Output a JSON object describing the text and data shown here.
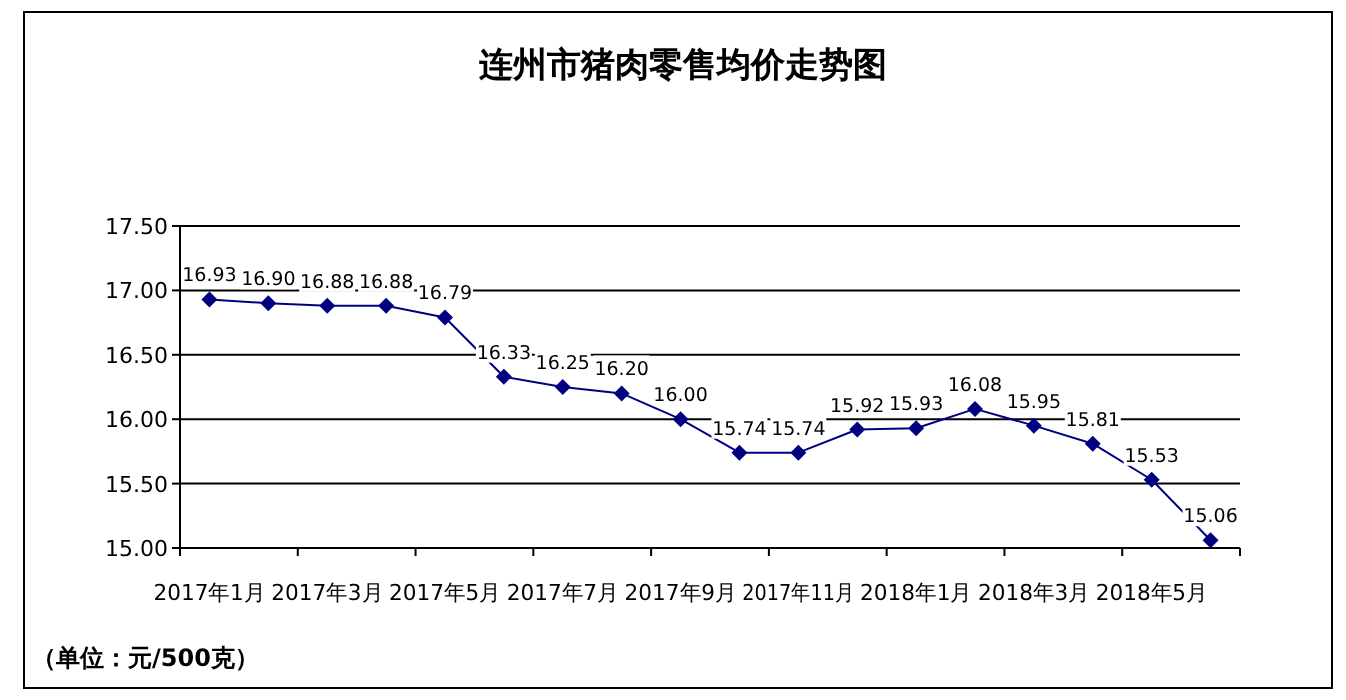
{
  "chart_data": {
    "type": "line",
    "title": "连州市猪肉零售均价走势图",
    "categories": [
      "2017年1月",
      null,
      "2017年3月",
      null,
      "2017年5月",
      null,
      "2017年7月",
      null,
      "2017年9月",
      null,
      "2017年11月",
      null,
      "2018年1月",
      null,
      "2018年3月",
      null,
      "2018年5月",
      null
    ],
    "series": [
      {
        "color": "#000080",
        "values": [
          16.93,
          16.9,
          16.88,
          16.88,
          16.79,
          16.33,
          16.25,
          16.2,
          16.0,
          15.74,
          15.74,
          15.92,
          15.93,
          16.08,
          15.95,
          15.81,
          15.53,
          15.06
        ],
        "value_labels": [
          "16.93",
          "16.90",
          "16.88",
          "16.88",
          "16.79",
          "16.33",
          "16.25",
          "16.20",
          "16.00",
          "15.74",
          "15.74",
          "15.92",
          "15.93",
          "16.08",
          "15.95",
          "15.81",
          "15.53",
          "15.06"
        ]
      }
    ],
    "ylim": [
      15.0,
      17.5
    ],
    "yticks": [
      "15.00",
      "15.50",
      "16.00",
      "16.50",
      "17.00",
      "17.50"
    ],
    "grid": "y",
    "marker": "diamond",
    "line_style": "solid",
    "annotations": [
      "（单位：元/500克）"
    ]
  }
}
